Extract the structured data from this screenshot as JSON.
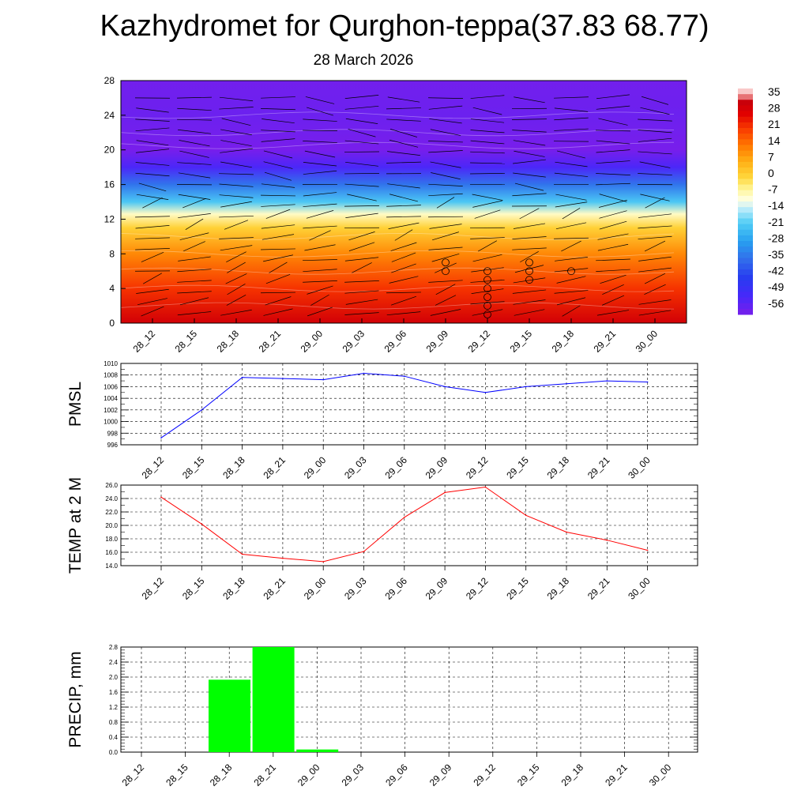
{
  "header": {
    "title": "Kazhydromet for Qurghon-teppa(37.83 68.77)",
    "subtitle": "28 March 2026"
  },
  "colors": {
    "pmsl_line": "#0000ff",
    "temp_line": "#ff0000",
    "precip_bar": "#00ff00",
    "wind_barb": "#000000"
  },
  "chart_data": [
    {
      "type": "heatmap",
      "name": "temperature-height-cross-section",
      "x_labels": [
        "28_12",
        "28_15",
        "28_18",
        "28_21",
        "29_00",
        "29_03",
        "29_06",
        "29_09",
        "29_12",
        "29_15",
        "29_18",
        "29_21",
        "30_00"
      ],
      "y_ticks": [
        0,
        4,
        8,
        12,
        16,
        20,
        24,
        28
      ],
      "ylim": [
        0,
        28
      ],
      "colorbar": {
        "labels": [
          "35",
          "28",
          "21",
          "14",
          "7",
          "0",
          "-7",
          "-14",
          "-21",
          "-28",
          "-35",
          "-42",
          "-49",
          "-56"
        ],
        "range": [
          -60,
          39
        ]
      },
      "temperature_by_level": [
        {
          "level": 0,
          "value": 31
        },
        {
          "level": 4,
          "value": 22
        },
        {
          "level": 8,
          "value": 12
        },
        {
          "level": 11,
          "value": 1
        },
        {
          "level": 12.6,
          "value": -8
        },
        {
          "level": 14,
          "value": -21
        },
        {
          "level": 16,
          "value": -35
        },
        {
          "level": 18,
          "value": -53
        },
        {
          "level": 20,
          "value": -60
        },
        {
          "level": 24,
          "value": -58
        },
        {
          "level": 28,
          "value": -59
        }
      ],
      "annotations": "wind barbs at every 3-hour step and ~1 km level; calm-wind circles near 29_09 to 29_18"
    },
    {
      "type": "line",
      "name": "pmsl",
      "ylabel": "PMSL",
      "categories": [
        "28_12",
        "28_15",
        "28_18",
        "28_21",
        "29_00",
        "29_03",
        "29_06",
        "29_09",
        "29_12",
        "29_15",
        "29_18",
        "29_21",
        "30_00"
      ],
      "values": [
        997.2,
        1002.0,
        1007.6,
        1007.4,
        1007.2,
        1008.3,
        1007.8,
        1006.0,
        1005.0,
        1006.0,
        1006.5,
        1007.0,
        1006.8
      ],
      "ylim": [
        996,
        1010
      ],
      "y_ticks": [
        "996",
        "998",
        "1000",
        "1002",
        "1004",
        "1006",
        "1008",
        "1010"
      ]
    },
    {
      "type": "line",
      "name": "temp-2m",
      "ylabel": "TEMP at 2 M",
      "categories": [
        "28_12",
        "28_15",
        "28_18",
        "28_21",
        "29_00",
        "29_03",
        "29_06",
        "29_09",
        "29_12",
        "29_15",
        "29_18",
        "29_21",
        "30_00"
      ],
      "values": [
        24.2,
        20.2,
        15.7,
        15.1,
        14.6,
        16.1,
        21.2,
        24.9,
        25.7,
        21.5,
        19.0,
        17.8,
        16.3
      ],
      "ylim": [
        14,
        26
      ],
      "y_ticks": [
        "14.0",
        "16.0",
        "18.0",
        "20.0",
        "22.0",
        "24.0",
        "26.0"
      ]
    },
    {
      "type": "bar",
      "name": "precip",
      "ylabel": "PRECIP, mm",
      "categories": [
        "28_12",
        "28_15",
        "28_18",
        "28_21",
        "29_00",
        "29_03",
        "29_06",
        "29_09",
        "29_12",
        "29_15",
        "29_18",
        "29_21",
        "30_00"
      ],
      "values": [
        0,
        0,
        1.93,
        2.8,
        0.07,
        0,
        0,
        0,
        0,
        0,
        0,
        0,
        0
      ],
      "ylim": [
        0,
        2.8
      ],
      "y_ticks": [
        "0.0",
        "0.4",
        "0.8",
        "1.2",
        "1.6",
        "2.0",
        "2.4",
        "2.8"
      ]
    }
  ]
}
